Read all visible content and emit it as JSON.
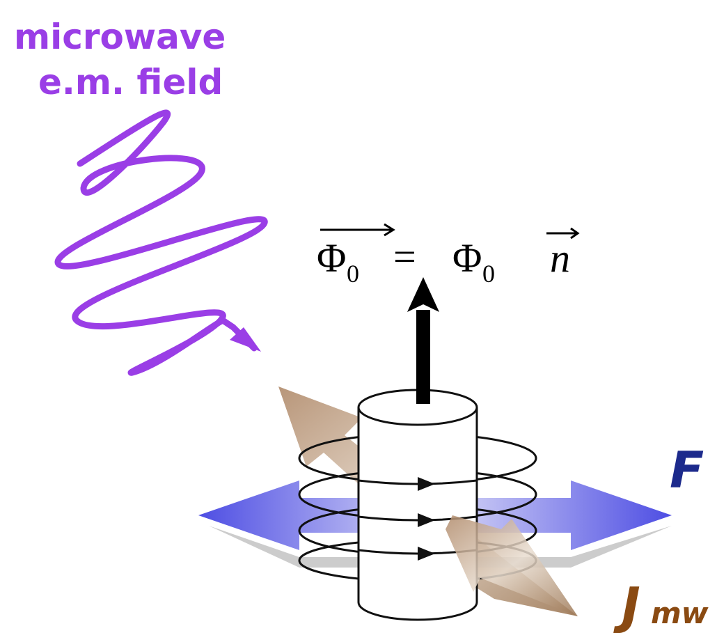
{
  "labels": {
    "wave_line1": "microwave",
    "wave_line2": "e.m. field"
  },
  "formula": {
    "lhs": "Φ",
    "lhs_sub": "0",
    "equals": "=",
    "rhs": "Φ",
    "rhs_sub": "0",
    "rhs_vec": "n"
  },
  "force": "F",
  "current": {
    "symbol": "J",
    "sub": "mw"
  }
}
